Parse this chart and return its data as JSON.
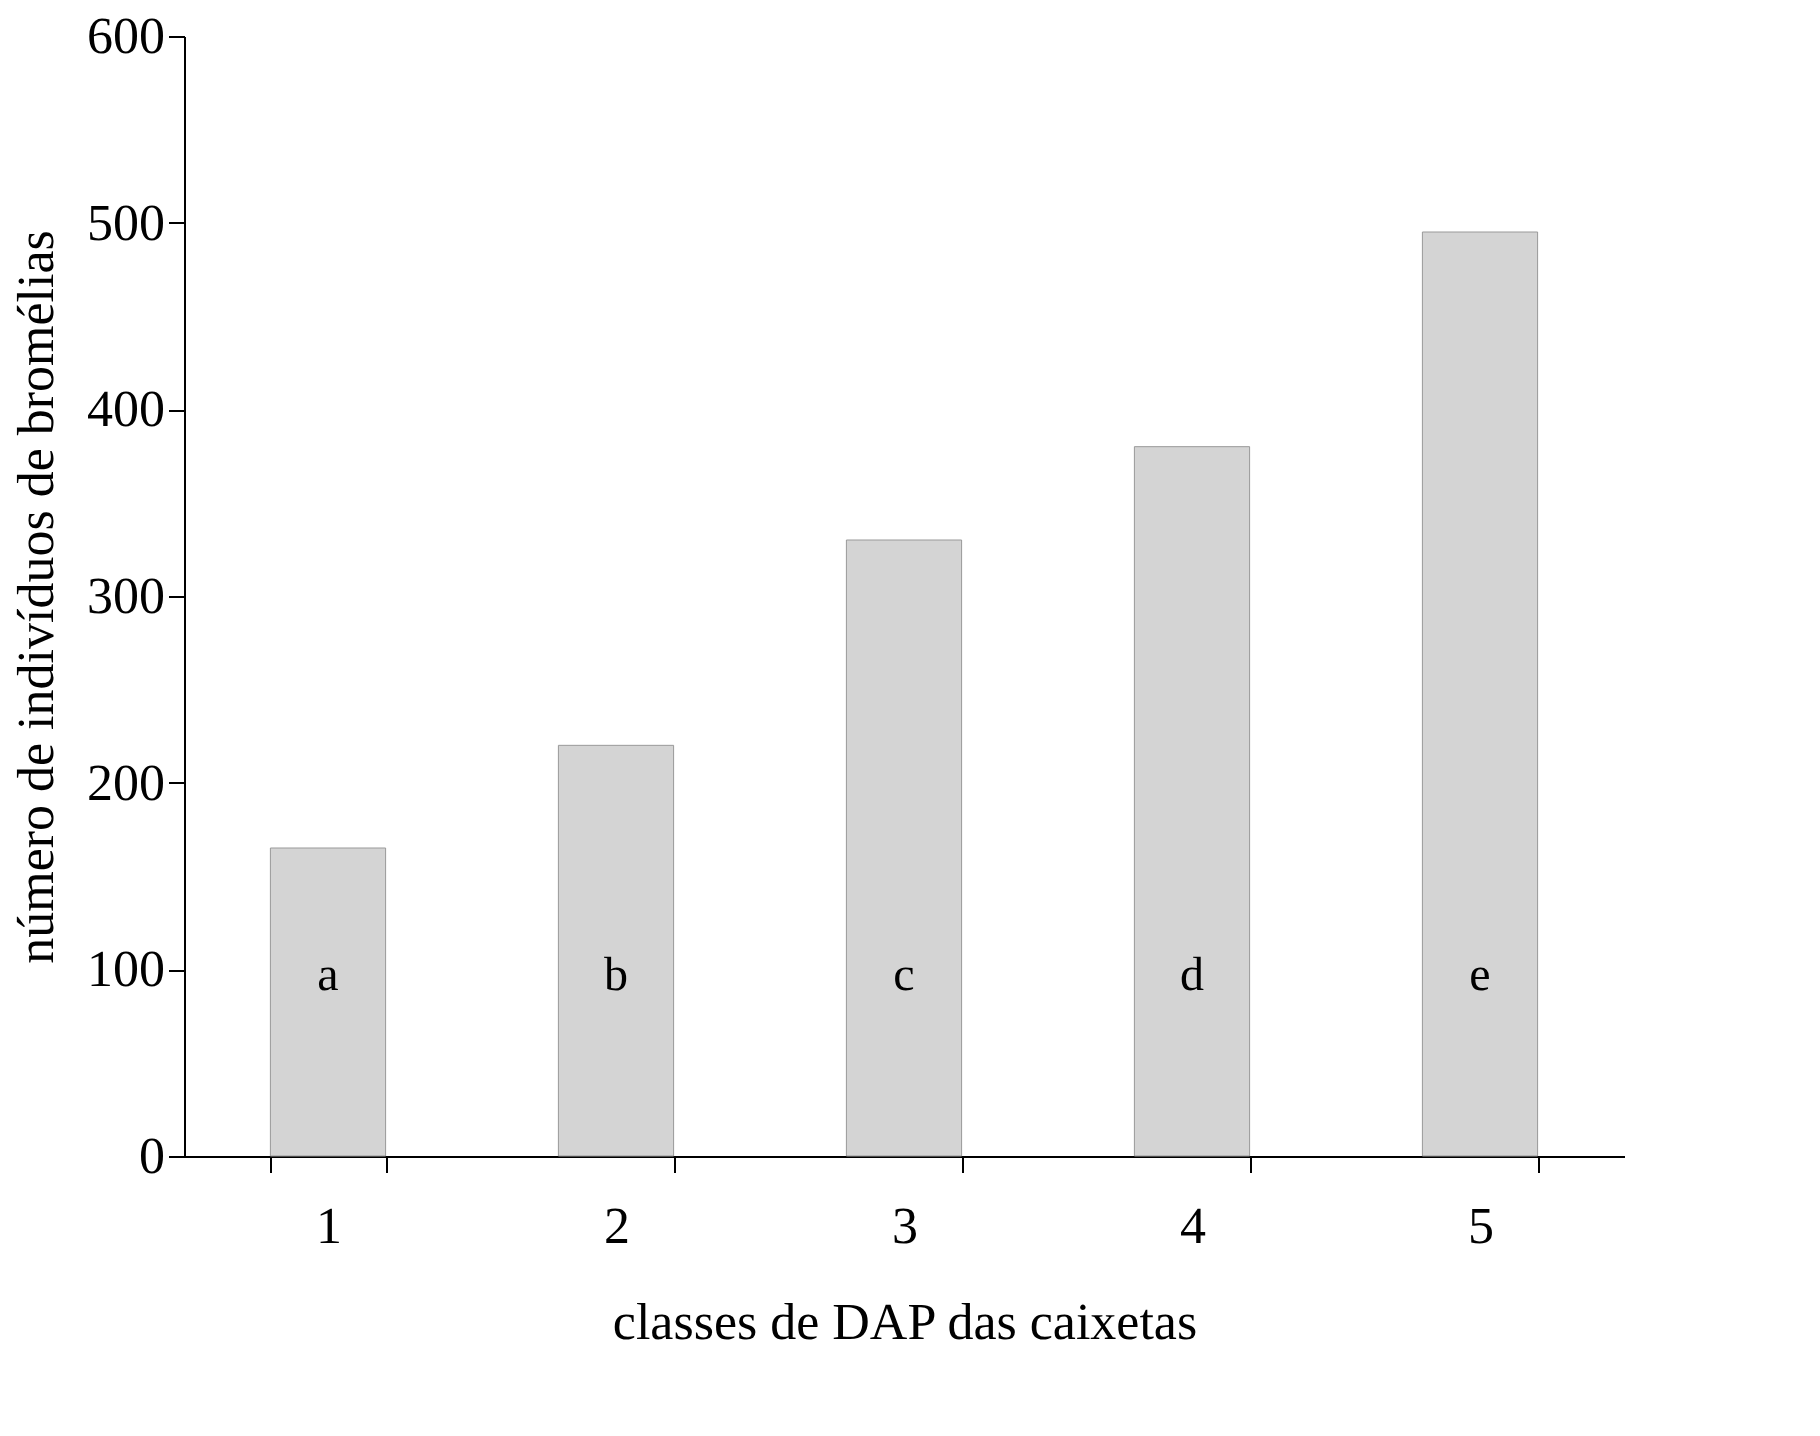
{
  "chart_data": {
    "type": "bar",
    "xlabel": "classes de DAP das caixetas",
    "ylabel": "número de indivíduos de bromélias",
    "categories": [
      "1",
      "2",
      "3",
      "4",
      "5"
    ],
    "values": [
      165,
      220,
      330,
      380,
      495
    ],
    "color": "#d4d4d4",
    "ylim": [
      0,
      600
    ],
    "yticks": [
      0,
      100,
      200,
      300,
      400,
      500,
      600
    ],
    "grid": false,
    "annotations": [
      "a",
      "b",
      "c",
      "d",
      "e"
    ]
  }
}
